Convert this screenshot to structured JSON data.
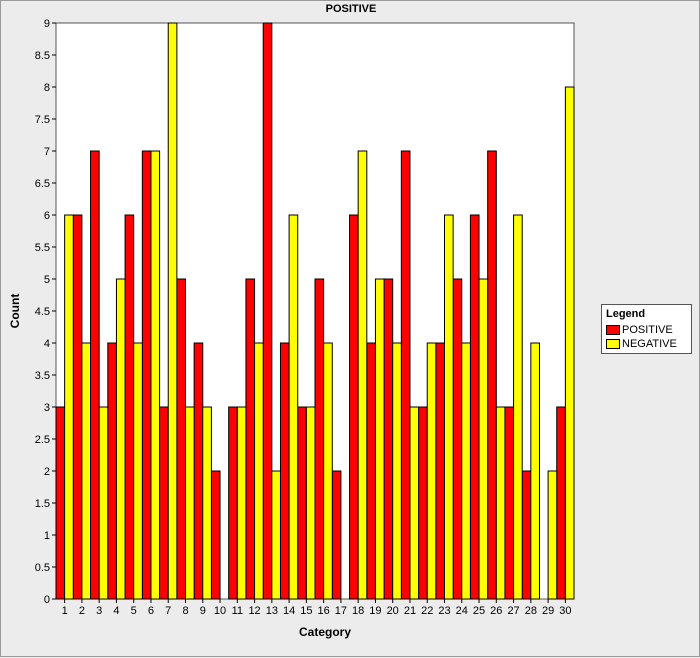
{
  "chart_data": {
    "type": "bar",
    "title": "POSITIVE",
    "xlabel": "Category",
    "ylabel": "Count",
    "ylim": [
      0,
      9
    ],
    "yticks": [
      "0",
      "0.5",
      "1",
      "1.5",
      "2",
      "2.5",
      "3",
      "3.5",
      "4",
      "4.5",
      "5",
      "5.5",
      "6",
      "6.5",
      "7",
      "7.5",
      "8",
      "8.5",
      "9"
    ],
    "categories": [
      "1",
      "2",
      "3",
      "4",
      "5",
      "6",
      "7",
      "8",
      "9",
      "10",
      "11",
      "12",
      "13",
      "14",
      "15",
      "16",
      "17",
      "18",
      "19",
      "20",
      "21",
      "22",
      "23",
      "24",
      "25",
      "26",
      "27",
      "28",
      "29",
      "30"
    ],
    "series": [
      {
        "name": "POSITIVE",
        "color": "#ff0000",
        "values": [
          3,
          6,
          7,
          4,
          6,
          7,
          3,
          5,
          4,
          2,
          3,
          5,
          9,
          4,
          3,
          5,
          2,
          6,
          4,
          5,
          7,
          3,
          4,
          5,
          6,
          7,
          3,
          2,
          0,
          3
        ]
      },
      {
        "name": "NEGATIVE",
        "color": "#ffff00",
        "values": [
          6,
          4,
          3,
          5,
          4,
          7,
          9,
          3,
          3,
          0,
          3,
          4,
          2,
          6,
          3,
          4,
          0,
          7,
          5,
          4,
          3,
          4,
          6,
          4,
          5,
          3,
          6,
          4,
          2,
          8
        ]
      }
    ],
    "legend": {
      "title": "Legend",
      "position": "right"
    },
    "grid": false
  }
}
